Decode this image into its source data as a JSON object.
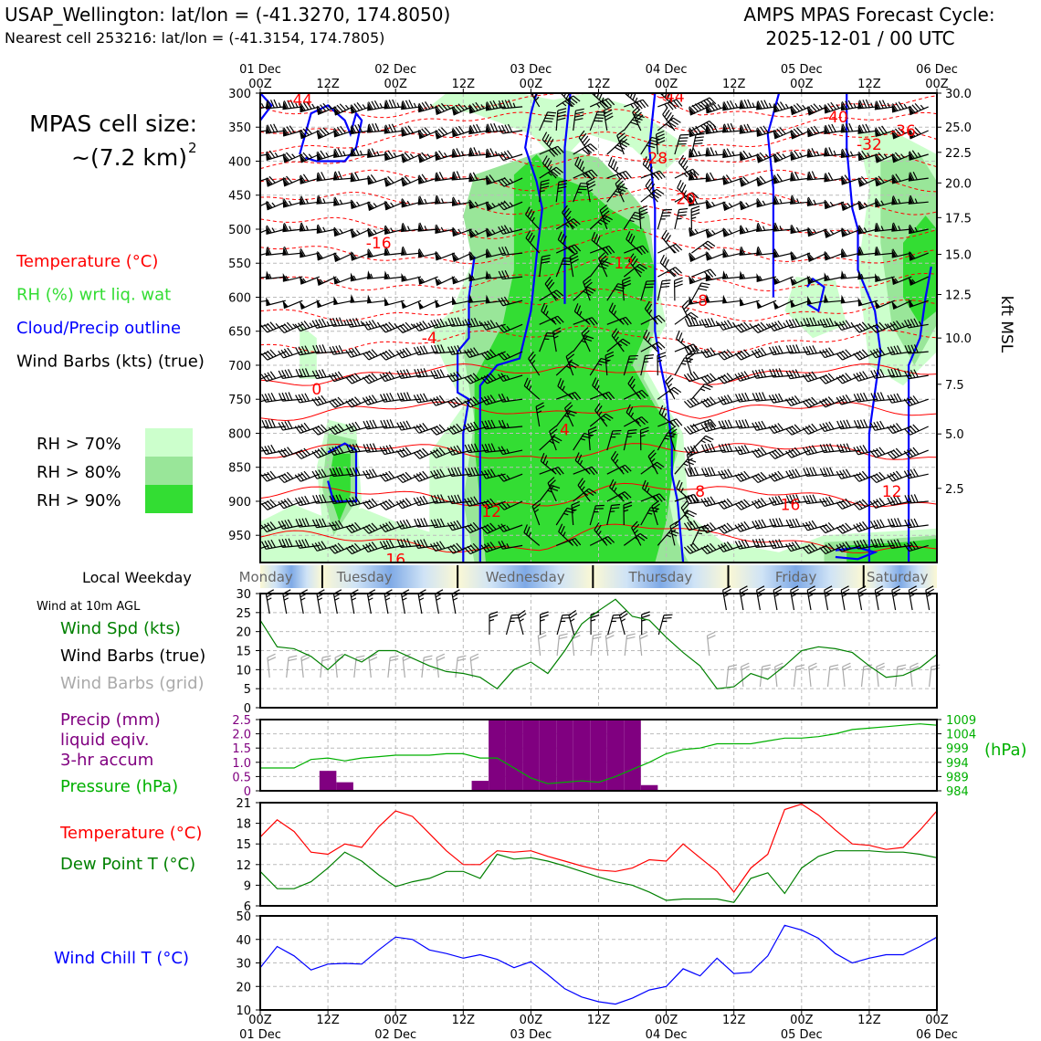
{
  "header": {
    "station_line": "USAP_Wellington: lat/lon = (-41.3270, 174.8050)",
    "cell_line": "Nearest cell 253216: lat/lon = (-41.3154, 174.7805)",
    "cycle_title": "AMPS MPAS Forecast Cycle:",
    "cycle_value": "2025-12-01 / 00 UTC"
  },
  "left_panel": {
    "cell_size_label": "MPAS cell size:",
    "cell_size_value": "~(7.2 km)",
    "cell_size_exp": "2",
    "legend": [
      {
        "text": "Temperature (°C)",
        "color": "#ff0000"
      },
      {
        "text": "RH (%) wrt liq. wat",
        "color": "#33dd33"
      },
      {
        "text": "Cloud/Precip outline",
        "color": "#0000ff"
      },
      {
        "text": "Wind Barbs (kts) (true)",
        "color": "#000000"
      }
    ],
    "rh_legend": [
      {
        "text": "RH > 70%",
        "color": "#ccffcc"
      },
      {
        "text": "RH > 80%",
        "color": "#99e699"
      },
      {
        "text": "RH > 90%",
        "color": "#33dd33"
      }
    ]
  },
  "time_axis": {
    "top": [
      {
        "l1": "01 Dec",
        "l2": "00Z"
      },
      {
        "l1": "",
        "l2": "12Z"
      },
      {
        "l1": "02 Dec",
        "l2": "00Z"
      },
      {
        "l1": "",
        "l2": "12Z"
      },
      {
        "l1": "03 Dec",
        "l2": "00Z"
      },
      {
        "l1": "",
        "l2": "12Z"
      },
      {
        "l1": "04 Dec",
        "l2": "00Z"
      },
      {
        "l1": "",
        "l2": "12Z"
      },
      {
        "l1": "05 Dec",
        "l2": "00Z"
      },
      {
        "l1": "",
        "l2": "12Z"
      },
      {
        "l1": "06 Dec",
        "l2": "00Z"
      }
    ],
    "bottom": [
      {
        "l1": "00Z",
        "l2": "01 Dec"
      },
      {
        "l1": "12Z",
        "l2": ""
      },
      {
        "l1": "00Z",
        "l2": "02 Dec"
      },
      {
        "l1": "12Z",
        "l2": ""
      },
      {
        "l1": "00Z",
        "l2": "03 Dec"
      },
      {
        "l1": "12Z",
        "l2": ""
      },
      {
        "l1": "00Z",
        "l2": "04 Dec"
      },
      {
        "l1": "12Z",
        "l2": ""
      },
      {
        "l1": "00Z",
        "l2": "05 Dec"
      },
      {
        "l1": "12Z",
        "l2": ""
      },
      {
        "l1": "00Z",
        "l2": "06 Dec"
      }
    ]
  },
  "weekday_bar": {
    "label": "Local Weekday",
    "days": [
      "Monday",
      "Tuesday",
      "Wednesday",
      "Thursday",
      "Friday",
      "Saturday"
    ]
  },
  "chart_data": [
    {
      "type": "heatmap",
      "name": "cross-section",
      "yaxis_left": {
        "label": "",
        "ticks": [
          300,
          350,
          400,
          450,
          500,
          550,
          600,
          650,
          700,
          750,
          800,
          850,
          900,
          950
        ],
        "range_hPa": [
          300,
          990
        ]
      },
      "yaxis_right": {
        "label": "kft MSL",
        "ticks": [
          {
            "hPa": 300,
            "label": "30.0"
          },
          {
            "hPa": 350,
            "label": "25.0"
          },
          {
            "hPa": 387,
            "label": "22.5"
          },
          {
            "hPa": 432,
            "label": "20.0"
          },
          {
            "hPa": 483,
            "label": "17.5"
          },
          {
            "hPa": 537,
            "label": "15.0"
          },
          {
            "hPa": 596,
            "label": "12.5"
          },
          {
            "hPa": 660,
            "label": "10.0"
          },
          {
            "hPa": 728,
            "label": "7.5"
          },
          {
            "hPa": 801,
            "label": "5.0"
          },
          {
            "hPa": 881,
            "label": "2.5"
          }
        ]
      },
      "x_hours": [
        0,
        120
      ],
      "temperature_labels": [
        {
          "t": 7,
          "p": 310,
          "text": "-44"
        },
        {
          "t": 73,
          "p": 305,
          "text": "-44"
        },
        {
          "t": 102,
          "p": 335,
          "text": "-40"
        },
        {
          "t": 114,
          "p": 355,
          "text": "-36"
        },
        {
          "t": 108,
          "p": 375,
          "text": "-32"
        },
        {
          "t": 70,
          "p": 395,
          "text": "-28"
        },
        {
          "t": 75,
          "p": 455,
          "text": "-20"
        },
        {
          "t": 21,
          "p": 520,
          "text": "-16"
        },
        {
          "t": 64,
          "p": 550,
          "text": "-12"
        },
        {
          "t": 78,
          "p": 605,
          "text": "-8"
        },
        {
          "t": 30,
          "p": 660,
          "text": "-4"
        },
        {
          "t": 10,
          "p": 735,
          "text": "0"
        },
        {
          "t": 54,
          "p": 795,
          "text": "4"
        },
        {
          "t": 78,
          "p": 885,
          "text": "8"
        },
        {
          "t": 112,
          "p": 885,
          "text": "12"
        },
        {
          "t": 41,
          "p": 915,
          "text": "12"
        },
        {
          "t": 94,
          "p": 905,
          "text": "16"
        },
        {
          "t": 24,
          "p": 985,
          "text": "16"
        }
      ]
    },
    {
      "type": "line",
      "name": "Wind at 10m AGL",
      "title": "Wind at 10m AGL",
      "ylabel_items": [
        {
          "text": "Wind Spd (kts)",
          "color": "#008000"
        },
        {
          "text": "Wind Barbs (true)",
          "color": "#000000"
        },
        {
          "text": "Wind Barbs (grid)",
          "color": "#aaaaaa"
        }
      ],
      "ylim": [
        0,
        30
      ],
      "yticks": [
        0,
        5,
        10,
        15,
        20,
        25,
        30
      ],
      "x": [
        0,
        3,
        6,
        9,
        12,
        15,
        18,
        21,
        24,
        27,
        30,
        33,
        36,
        39,
        42,
        45,
        48,
        51,
        54,
        57,
        60,
        63,
        66,
        69,
        72,
        75,
        78,
        81,
        84,
        87,
        90,
        93,
        96,
        99,
        102,
        105,
        108,
        111,
        114,
        117,
        120
      ],
      "series": [
        {
          "name": "Wind Spd (kts)",
          "values": [
            23,
            16,
            15.5,
            13.5,
            10,
            14,
            12,
            15,
            15,
            13,
            11,
            9.5,
            9,
            8,
            5,
            10,
            12,
            9,
            15,
            22,
            25.5,
            28.5,
            24,
            23,
            18.5,
            14.5,
            11,
            5,
            5.5,
            9,
            7.5,
            11,
            15,
            16,
            15.5,
            14.5,
            11,
            8,
            8.5,
            10.5,
            14
          ]
        }
      ]
    },
    {
      "type": "bar",
      "name": "Precip and Pressure",
      "ylabel_items": [
        {
          "text": "Precip (mm)",
          "color": "#800080"
        },
        {
          "text": "liquid eqiv.",
          "color": "#800080"
        },
        {
          "text": "3-hr accum",
          "color": "#800080"
        },
        {
          "text": "Pressure (hPa)",
          "color": "#00b000"
        }
      ],
      "right_label": "(hPa)",
      "ylim": [
        0,
        2.5
      ],
      "yticks": [
        0,
        0.5,
        1.0,
        1.5,
        2.0,
        2.5
      ],
      "ytick_labels": [
        "0",
        "0.5",
        "1.0",
        "1.5",
        "2.0",
        "2.5"
      ],
      "y2lim": [
        984,
        1009
      ],
      "y2ticks": [
        984,
        989,
        994,
        999,
        1004,
        1009
      ],
      "bar_width_h": 3,
      "precip": {
        "x": [
          12,
          15,
          39,
          42,
          45,
          48,
          51,
          54,
          57,
          60,
          63,
          66,
          69
        ],
        "values": [
          0.7,
          0.3,
          0.35,
          2.5,
          2.5,
          2.5,
          2.5,
          2.5,
          2.5,
          2.5,
          2.5,
          2.5,
          0.2
        ]
      },
      "pressure": {
        "x": [
          0,
          6,
          9,
          12,
          15,
          18,
          21,
          24,
          27,
          30,
          33,
          36,
          39,
          42,
          45,
          48,
          51,
          54,
          57,
          60,
          63,
          66,
          69,
          72,
          75,
          78,
          81,
          84,
          87,
          90,
          93,
          96,
          99,
          102,
          105,
          108,
          111,
          114,
          117,
          120
        ],
        "values": [
          992,
          992,
          995,
          995.5,
          994.5,
          995.5,
          996,
          996.5,
          996.5,
          996.5,
          997,
          997,
          995.5,
          995.5,
          992,
          988.5,
          986.5,
          987,
          987.5,
          987,
          989,
          991.5,
          994,
          997,
          998.5,
          999,
          1000.5,
          1000.5,
          1000.5,
          1001.5,
          1002.5,
          1002.5,
          1003,
          1004,
          1005.5,
          1006,
          1006.5,
          1007,
          1007.5,
          1007
        ]
      }
    },
    {
      "type": "line",
      "name": "Temperature and Dew Point",
      "ylabel_items": [
        {
          "text": "Temperature (°C)",
          "color": "#ff0000"
        },
        {
          "text": "Dew Point T (°C)",
          "color": "#008000"
        }
      ],
      "ylim": [
        6,
        21
      ],
      "yticks": [
        6,
        9,
        12,
        15,
        18,
        21
      ],
      "x": [
        0,
        3,
        6,
        9,
        12,
        15,
        18,
        21,
        24,
        27,
        30,
        33,
        36,
        39,
        42,
        45,
        48,
        51,
        54,
        57,
        60,
        63,
        66,
        69,
        72,
        75,
        78,
        81,
        84,
        87,
        90,
        93,
        96,
        99,
        102,
        105,
        108,
        111,
        114,
        117,
        120
      ],
      "series": [
        {
          "name": "Temperature (°C)",
          "values": [
            16,
            18.5,
            16.8,
            13.8,
            13.5,
            15,
            14.5,
            17.5,
            19.8,
            19,
            16.5,
            14,
            12,
            12,
            14,
            13.8,
            14,
            13.2,
            12.5,
            11.8,
            11.2,
            11,
            11.5,
            12.7,
            12.5,
            15,
            13,
            11,
            8,
            11.5,
            13.5,
            20,
            20.8,
            19.2,
            17,
            15,
            14.8,
            14.2,
            14.5,
            17,
            19.8
          ]
        },
        {
          "name": "Dew Point T (°C)",
          "values": [
            11,
            8.5,
            8.5,
            9.5,
            11.5,
            13.8,
            12.5,
            10.5,
            8.8,
            9.5,
            10,
            11,
            11,
            10,
            13.5,
            12.8,
            13,
            12.5,
            11.8,
            11,
            10.2,
            9.5,
            9,
            8,
            6.8,
            7,
            7,
            7,
            6.5,
            10,
            10.8,
            7.8,
            11.5,
            13.2,
            14,
            14,
            14,
            13.8,
            13.8,
            13.5,
            13
          ]
        }
      ]
    },
    {
      "type": "line",
      "name": "Wind Chill",
      "ylabel_items": [
        {
          "text": "Wind Chill T (°C)",
          "color": "#0000ff"
        }
      ],
      "ylim": [
        10,
        50
      ],
      "yticks": [
        10,
        20,
        30,
        40,
        50
      ],
      "x": [
        0,
        3,
        6,
        9,
        12,
        15,
        18,
        21,
        24,
        27,
        30,
        33,
        36,
        39,
        42,
        45,
        48,
        51,
        54,
        57,
        60,
        63,
        66,
        69,
        72,
        75,
        78,
        81,
        84,
        87,
        90,
        93,
        96,
        99,
        102,
        105,
        108,
        111,
        114,
        117,
        120
      ],
      "series": [
        {
          "name": "Wind Chill T (°C)",
          "values": [
            28,
            37,
            33,
            27,
            29.5,
            29.8,
            29.5,
            35.5,
            41,
            40,
            35.5,
            34,
            32,
            33.5,
            31.5,
            28,
            30.5,
            25,
            19,
            15.5,
            13.5,
            12.5,
            15,
            18.5,
            20,
            27.5,
            24.5,
            32,
            25.5,
            26,
            33,
            46,
            44,
            40.5,
            34,
            30,
            32,
            33.5,
            33.5,
            37,
            41
          ]
        }
      ]
    }
  ]
}
